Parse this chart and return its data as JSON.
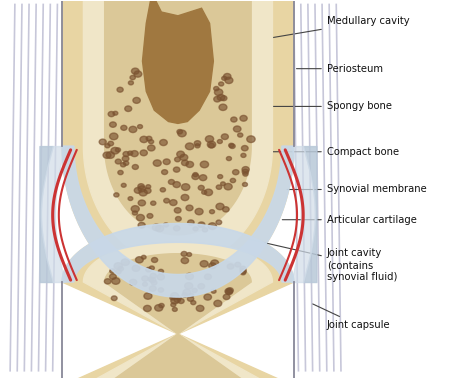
{
  "bg_color": "#ffffff",
  "fig_width": 4.74,
  "fig_height": 3.79,
  "dpi": 100,
  "colors": {
    "bone_outer": "#e8d5a3",
    "bone_compact": "#dbc898",
    "bone_cream": "#f0e6c8",
    "bone_spongy": "#c8a870",
    "medullary": "#a07840",
    "cartilage_light": "#c8d8e8",
    "capsule": "#b8c8d8",
    "capsule_light": "#d0dce8",
    "synovial_membrane": "#cc3333",
    "muscle_fiber": "#9999bb",
    "text_color": "#111111",
    "spongy_dot": "#7a5230",
    "periosteum": "#888899"
  },
  "annotations": [
    [
      "Medullary cavity",
      [
        0.375,
        0.86
      ],
      [
        0.69,
        0.945
      ]
    ],
    [
      "Periosteum",
      [
        0.62,
        0.82
      ],
      [
        0.69,
        0.82
      ]
    ],
    [
      "Spongy bone",
      [
        0.43,
        0.72
      ],
      [
        0.69,
        0.72
      ]
    ],
    [
      "Compact bone",
      [
        0.55,
        0.6
      ],
      [
        0.69,
        0.6
      ]
    ],
    [
      "Synovial membrane",
      [
        0.6,
        0.5
      ],
      [
        0.69,
        0.5
      ]
    ],
    [
      "Articular cartilage",
      [
        0.59,
        0.42
      ],
      [
        0.69,
        0.42
      ]
    ],
    [
      "Joint cavity\n(contains\nsynovial fluid)",
      [
        0.52,
        0.37
      ],
      [
        0.69,
        0.3
      ]
    ],
    [
      "Joint capsule",
      [
        0.655,
        0.2
      ],
      [
        0.69,
        0.14
      ]
    ]
  ]
}
